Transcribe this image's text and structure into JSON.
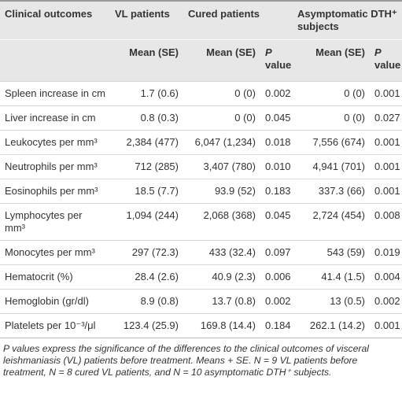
{
  "table": {
    "header": [
      [
        "Clinical outcomes",
        "VL patients",
        "Cured patients",
        "Asymptomatic DTH⁺ subjects"
      ],
      [
        "Mean (SE)",
        "Mean (SE)",
        "P value",
        "Mean (SE)",
        "P value"
      ]
    ],
    "rows": [
      [
        "Spleen increase in cm",
        "1.7 (0.6)",
        "0 (0)",
        "0.002",
        "0 (0)",
        "0.001"
      ],
      [
        "Liver increase in cm",
        "0.8 (0.3)",
        "0 (0)",
        "0.045",
        "0 (0)",
        "0.027"
      ],
      [
        "Leukocytes per mm³",
        "2,384 (477)",
        "6,047 (1,234)",
        "0.018",
        "7,556 (674)",
        "0.001"
      ],
      [
        "Neutrophils per mm³",
        "712 (285)",
        "3,407 (780)",
        "0.010",
        "4,941 (701)",
        "0.001"
      ],
      [
        "Eosinophils per mm³",
        "18.5 (7.7)",
        "93.9 (52)",
        "0.183",
        "337.3 (66)",
        "0.001"
      ],
      [
        "Lymphocytes per mm³",
        "1,094 (244)",
        "2,068 (368)",
        "0.045",
        "2,724 (454)",
        "0.008"
      ],
      [
        "Monocytes per mm³",
        "297 (72.3)",
        "433 (32.4)",
        "0.097",
        "543 (59)",
        "0.019"
      ],
      [
        "Hematocrit (%)",
        "28.4 (2.6)",
        "40.9 (2.3)",
        "0.006",
        "41.4 (1.5)",
        "0.004"
      ],
      [
        "Hemoglobin (gr/dl)",
        "8.9 (0.8)",
        "13.7 (0.8)",
        "0.002",
        "13 (0.5)",
        "0.002"
      ],
      [
        "Platelets per 10⁻³/μl",
        "123.4 (25.9)",
        "169.8 (14.4)",
        "0.184",
        "262.1 (14.2)",
        "0.001"
      ]
    ]
  },
  "footnote": [
    "P",
    " values express the significance of the differences to the clinical outcomes of visceral leishmaniasis (VL) patients before treatment. Means + SE. ",
    "N",
    " = 9 VL patients before treatment, ",
    "N",
    " = 8 cured VL patients, and ",
    "N",
    " = 10 asymptomatic DTH⁺ subjects."
  ]
}
